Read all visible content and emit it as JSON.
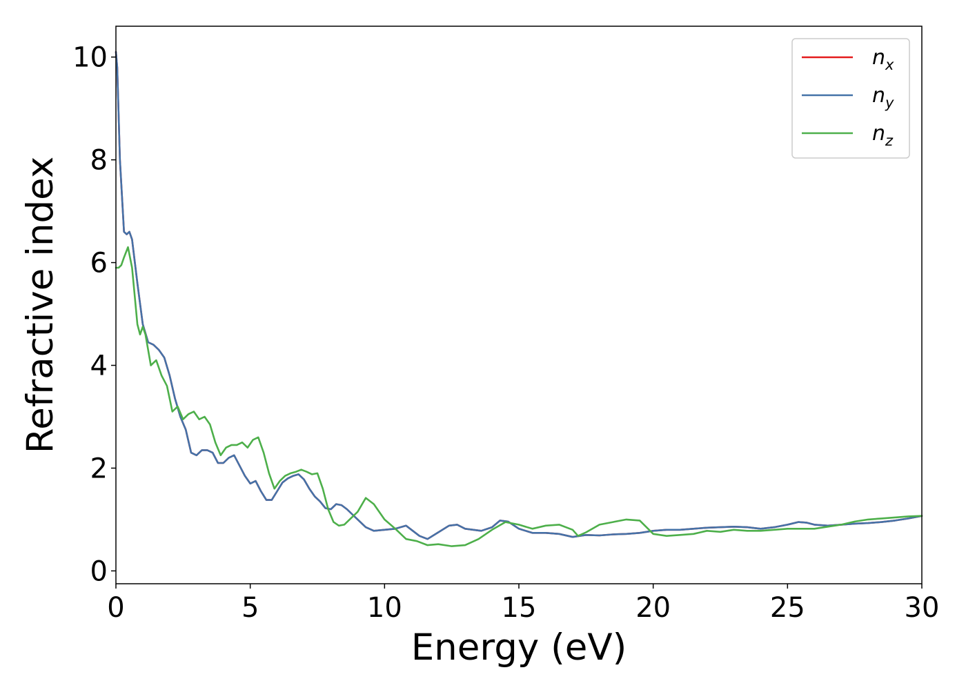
{
  "chart_data": {
    "type": "line",
    "xlabel": "Energy (eV)",
    "ylabel": "Refractive index",
    "xlim": [
      0,
      30
    ],
    "ylim": [
      -0.25,
      10.6
    ],
    "xticks": [
      0,
      5,
      10,
      15,
      20,
      25,
      30
    ],
    "yticks": [
      0,
      2,
      4,
      6,
      8,
      10
    ],
    "grid": false,
    "legend_position": "top-right",
    "series": [
      {
        "name": "n",
        "subscript": "x",
        "color": "#e41a1c",
        "x": [
          0,
          0.05,
          0.15,
          0.3,
          0.4,
          0.5,
          0.6,
          0.8,
          1.0,
          1.2,
          1.4,
          1.6,
          1.8,
          2.0,
          2.2,
          2.4,
          2.6,
          2.8,
          3.0,
          3.2,
          3.4,
          3.6,
          3.8,
          4.0,
          4.2,
          4.4,
          4.6,
          4.8,
          5.0,
          5.2,
          5.4,
          5.6,
          5.8,
          6.0,
          6.2,
          6.4,
          6.6,
          6.8,
          7.0,
          7.2,
          7.4,
          7.6,
          7.8,
          8.0,
          8.2,
          8.4,
          8.6,
          8.8,
          9.0,
          9.3,
          9.6,
          10.0,
          10.4,
          10.8,
          11.0,
          11.3,
          11.6,
          12.0,
          12.4,
          12.7,
          13.0,
          13.3,
          13.6,
          14.0,
          14.3,
          14.6,
          15.0,
          15.5,
          16.0,
          16.5,
          17.0,
          17.5,
          18.0,
          18.5,
          19.0,
          19.5,
          20.0,
          20.5,
          21.0,
          21.5,
          22.0,
          22.5,
          23.0,
          23.5,
          24.0,
          24.5,
          25.0,
          25.4,
          25.7,
          26.0,
          26.5,
          27.0,
          27.5,
          28.0,
          28.5,
          29.0,
          29.5,
          30.0
        ],
        "values": [
          10.1,
          9.8,
          8.0,
          6.6,
          6.55,
          6.6,
          6.45,
          5.6,
          4.8,
          4.45,
          4.4,
          4.3,
          4.15,
          3.8,
          3.35,
          3.0,
          2.75,
          2.3,
          2.25,
          2.35,
          2.35,
          2.3,
          2.1,
          2.1,
          2.2,
          2.25,
          2.05,
          1.85,
          1.7,
          1.75,
          1.55,
          1.38,
          1.38,
          1.55,
          1.72,
          1.8,
          1.85,
          1.88,
          1.78,
          1.6,
          1.45,
          1.35,
          1.22,
          1.2,
          1.3,
          1.28,
          1.2,
          1.1,
          1.0,
          0.85,
          0.78,
          0.8,
          0.82,
          0.88,
          0.8,
          0.68,
          0.62,
          0.75,
          0.88,
          0.9,
          0.82,
          0.8,
          0.78,
          0.85,
          0.98,
          0.96,
          0.82,
          0.74,
          0.74,
          0.72,
          0.66,
          0.7,
          0.69,
          0.71,
          0.72,
          0.74,
          0.78,
          0.8,
          0.8,
          0.82,
          0.84,
          0.85,
          0.86,
          0.85,
          0.82,
          0.85,
          0.9,
          0.95,
          0.94,
          0.9,
          0.88,
          0.9,
          0.92,
          0.93,
          0.95,
          0.98,
          1.02,
          1.07
        ]
      },
      {
        "name": "n",
        "subscript": "y",
        "color": "#4472a8",
        "x": [
          0,
          0.05,
          0.15,
          0.3,
          0.4,
          0.5,
          0.6,
          0.8,
          1.0,
          1.2,
          1.4,
          1.6,
          1.8,
          2.0,
          2.2,
          2.4,
          2.6,
          2.8,
          3.0,
          3.2,
          3.4,
          3.6,
          3.8,
          4.0,
          4.2,
          4.4,
          4.6,
          4.8,
          5.0,
          5.2,
          5.4,
          5.6,
          5.8,
          6.0,
          6.2,
          6.4,
          6.6,
          6.8,
          7.0,
          7.2,
          7.4,
          7.6,
          7.8,
          8.0,
          8.2,
          8.4,
          8.6,
          8.8,
          9.0,
          9.3,
          9.6,
          10.0,
          10.4,
          10.8,
          11.0,
          11.3,
          11.6,
          12.0,
          12.4,
          12.7,
          13.0,
          13.3,
          13.6,
          14.0,
          14.3,
          14.6,
          15.0,
          15.5,
          16.0,
          16.5,
          17.0,
          17.5,
          18.0,
          18.5,
          19.0,
          19.5,
          20.0,
          20.5,
          21.0,
          21.5,
          22.0,
          22.5,
          23.0,
          23.5,
          24.0,
          24.5,
          25.0,
          25.4,
          25.7,
          26.0,
          26.5,
          27.0,
          27.5,
          28.0,
          28.5,
          29.0,
          29.5,
          30.0
        ],
        "values": [
          10.1,
          9.8,
          8.0,
          6.6,
          6.55,
          6.6,
          6.45,
          5.6,
          4.8,
          4.45,
          4.4,
          4.3,
          4.15,
          3.8,
          3.35,
          3.0,
          2.75,
          2.3,
          2.25,
          2.35,
          2.35,
          2.3,
          2.1,
          2.1,
          2.2,
          2.25,
          2.05,
          1.85,
          1.7,
          1.75,
          1.55,
          1.38,
          1.38,
          1.55,
          1.72,
          1.8,
          1.85,
          1.88,
          1.78,
          1.6,
          1.45,
          1.35,
          1.22,
          1.2,
          1.3,
          1.28,
          1.2,
          1.1,
          1.0,
          0.85,
          0.78,
          0.8,
          0.82,
          0.88,
          0.8,
          0.68,
          0.62,
          0.75,
          0.88,
          0.9,
          0.82,
          0.8,
          0.78,
          0.85,
          0.98,
          0.96,
          0.82,
          0.74,
          0.74,
          0.72,
          0.66,
          0.7,
          0.69,
          0.71,
          0.72,
          0.74,
          0.78,
          0.8,
          0.8,
          0.82,
          0.84,
          0.85,
          0.86,
          0.85,
          0.82,
          0.85,
          0.9,
          0.95,
          0.94,
          0.9,
          0.88,
          0.9,
          0.92,
          0.93,
          0.95,
          0.98,
          1.02,
          1.07
        ]
      },
      {
        "name": "n",
        "subscript": "z",
        "color": "#4daf4a",
        "x": [
          0,
          0.1,
          0.2,
          0.3,
          0.45,
          0.6,
          0.8,
          0.9,
          1.0,
          1.1,
          1.3,
          1.5,
          1.7,
          1.9,
          2.1,
          2.3,
          2.5,
          2.7,
          2.9,
          3.1,
          3.3,
          3.5,
          3.7,
          3.9,
          4.1,
          4.3,
          4.5,
          4.7,
          4.9,
          5.1,
          5.3,
          5.5,
          5.7,
          5.9,
          6.1,
          6.3,
          6.5,
          6.7,
          6.9,
          7.1,
          7.3,
          7.5,
          7.7,
          7.9,
          8.1,
          8.3,
          8.5,
          8.7,
          9.0,
          9.3,
          9.6,
          10.0,
          10.4,
          10.8,
          11.2,
          11.6,
          12.0,
          12.5,
          13.0,
          13.5,
          14.0,
          14.5,
          15.0,
          15.5,
          16.0,
          16.5,
          17.0,
          17.2,
          17.5,
          18.0,
          18.5,
          19.0,
          19.5,
          20.0,
          20.5,
          21.0,
          21.5,
          22.0,
          22.5,
          23.0,
          23.5,
          24.0,
          24.5,
          25.0,
          25.5,
          26.0,
          26.5,
          27.0,
          27.5,
          28.0,
          28.5,
          29.0,
          29.5,
          30.0
        ],
        "values": [
          5.9,
          5.9,
          5.95,
          6.1,
          6.3,
          5.9,
          4.8,
          4.6,
          4.75,
          4.6,
          4.0,
          4.1,
          3.8,
          3.6,
          3.1,
          3.2,
          2.95,
          3.05,
          3.1,
          2.95,
          3.0,
          2.85,
          2.5,
          2.25,
          2.4,
          2.45,
          2.45,
          2.5,
          2.4,
          2.55,
          2.6,
          2.3,
          1.9,
          1.6,
          1.75,
          1.85,
          1.9,
          1.93,
          1.97,
          1.93,
          1.88,
          1.9,
          1.6,
          1.2,
          0.95,
          0.88,
          0.9,
          1.0,
          1.15,
          1.42,
          1.3,
          1.0,
          0.82,
          0.62,
          0.58,
          0.5,
          0.52,
          0.48,
          0.5,
          0.62,
          0.8,
          0.95,
          0.9,
          0.82,
          0.88,
          0.9,
          0.8,
          0.68,
          0.75,
          0.9,
          0.95,
          1.0,
          0.98,
          0.72,
          0.68,
          0.7,
          0.72,
          0.78,
          0.76,
          0.8,
          0.78,
          0.78,
          0.8,
          0.82,
          0.82,
          0.82,
          0.86,
          0.9,
          0.96,
          1.0,
          1.02,
          1.04,
          1.06,
          1.07
        ]
      }
    ]
  }
}
